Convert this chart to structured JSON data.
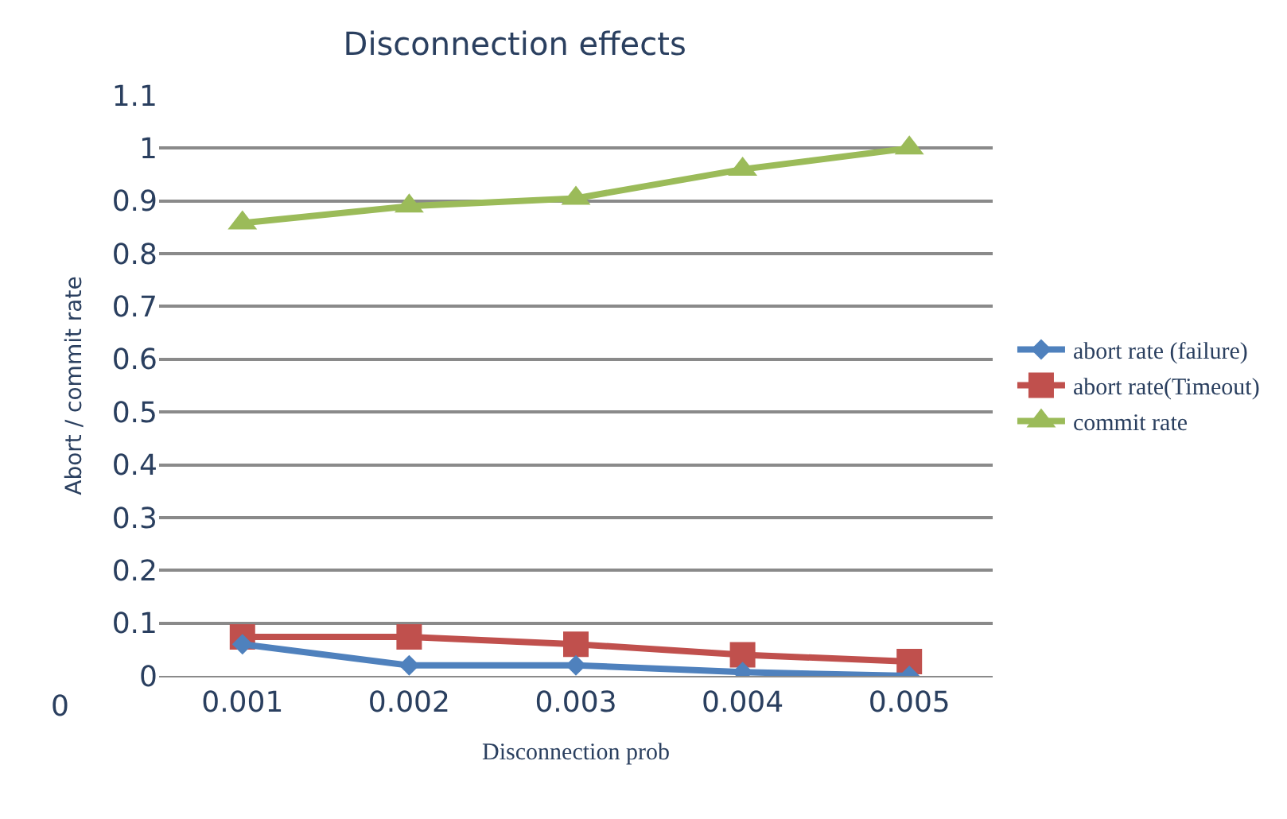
{
  "chart_data": {
    "type": "line",
    "title": "Disconnection effects",
    "xlabel": "Disconnection prob",
    "ylabel": "Abort / commit rate",
    "categories": [
      "0.001",
      "0.002",
      "0.003",
      "0.004",
      "0.005"
    ],
    "series": [
      {
        "name": "abort rate (failure)",
        "color": "#4f81bd",
        "marker": "diamond",
        "values": [
          0.06,
          0.02,
          0.02,
          0.007,
          0.0
        ]
      },
      {
        "name": "abort rate(Timeout)",
        "color": "#c0504d",
        "marker": "square",
        "values": [
          0.074,
          0.074,
          0.06,
          0.04,
          0.027
        ]
      },
      {
        "name": "commit rate",
        "color": "#9bbb59",
        "marker": "triangle",
        "values": [
          0.858,
          0.89,
          0.905,
          0.96,
          1.0
        ]
      }
    ],
    "ylim": [
      0,
      1.1
    ],
    "yticks": [
      0,
      0.1,
      0.2,
      0.3,
      0.4,
      0.5,
      0.6,
      0.7,
      0.8,
      0.9,
      1,
      1.1
    ],
    "grid": "y",
    "legend": "right",
    "annotations": [
      "0"
    ]
  }
}
